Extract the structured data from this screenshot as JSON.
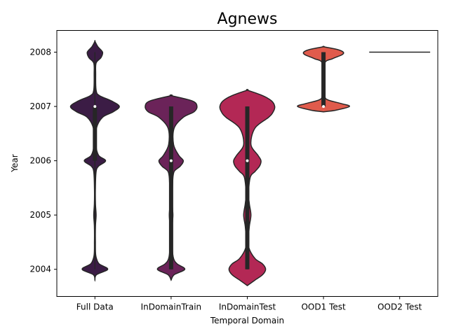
{
  "chart_data": {
    "type": "violin",
    "title": "Agnews",
    "xlabel": "Temporal Domain",
    "ylabel": "Year",
    "ylim": [
      2003.5,
      2008.4
    ],
    "yticks": [
      2004,
      2005,
      2006,
      2007,
      2008
    ],
    "ytick_labels": [
      "2004",
      "2005",
      "2006",
      "2007",
      "2008"
    ],
    "categories": [
      "Full Data",
      "InDomainTrain",
      "InDomainTest",
      "OOD1 Test",
      "OOD2 Test"
    ],
    "grid": false,
    "series": [
      {
        "category": "Full Data",
        "color": "#3b1c45",
        "median": 2007,
        "q1": 2006,
        "q3": 2007,
        "min": 2004,
        "max": 2008,
        "density": [
          [
            2003.8,
            0
          ],
          [
            2003.9,
            0.05
          ],
          [
            2004.0,
            0.42
          ],
          [
            2004.1,
            0.14
          ],
          [
            2004.2,
            0.05
          ],
          [
            2004.3,
            0.02
          ],
          [
            2004.5,
            0.015
          ],
          [
            2004.8,
            0.018
          ],
          [
            2005.0,
            0.04
          ],
          [
            2005.2,
            0.018
          ],
          [
            2005.5,
            0.015
          ],
          [
            2005.8,
            0.04
          ],
          [
            2005.9,
            0.12
          ],
          [
            2006.0,
            0.35
          ],
          [
            2006.1,
            0.12
          ],
          [
            2006.3,
            0.03
          ],
          [
            2006.6,
            0.05
          ],
          [
            2006.8,
            0.25
          ],
          [
            2006.9,
            0.6
          ],
          [
            2007.0,
            0.8
          ],
          [
            2007.1,
            0.55
          ],
          [
            2007.2,
            0.15
          ],
          [
            2007.3,
            0.04
          ],
          [
            2007.6,
            0.025
          ],
          [
            2007.8,
            0.04
          ],
          [
            2007.9,
            0.2
          ],
          [
            2008.0,
            0.25
          ],
          [
            2008.1,
            0.1
          ],
          [
            2008.2,
            0
          ]
        ]
      },
      {
        "category": "InDomainTrain",
        "color": "#6b2359",
        "median": 2006,
        "q1": 2004,
        "q3": 2007,
        "min": 2004,
        "max": 2007,
        "density": [
          [
            2003.8,
            0
          ],
          [
            2003.9,
            0.1
          ],
          [
            2004.0,
            0.45
          ],
          [
            2004.1,
            0.2
          ],
          [
            2004.2,
            0.08
          ],
          [
            2004.4,
            0.04
          ],
          [
            2004.8,
            0.04
          ],
          [
            2005.0,
            0.06
          ],
          [
            2005.2,
            0.04
          ],
          [
            2005.6,
            0.05
          ],
          [
            2005.8,
            0.1
          ],
          [
            2005.9,
            0.3
          ],
          [
            2006.0,
            0.4
          ],
          [
            2006.1,
            0.25
          ],
          [
            2006.3,
            0.08
          ],
          [
            2006.6,
            0.1
          ],
          [
            2006.8,
            0.4
          ],
          [
            2006.9,
            0.75
          ],
          [
            2007.0,
            0.85
          ],
          [
            2007.1,
            0.7
          ],
          [
            2007.2,
            0
          ]
        ]
      },
      {
        "category": "InDomainTest",
        "color": "#b32855",
        "median": 2006,
        "q1": 2004,
        "q3": 2007,
        "min": 2004,
        "max": 2007,
        "density": [
          [
            2003.7,
            0
          ],
          [
            2003.8,
            0.25
          ],
          [
            2003.9,
            0.5
          ],
          [
            2004.0,
            0.6
          ],
          [
            2004.1,
            0.5
          ],
          [
            2004.2,
            0.25
          ],
          [
            2004.4,
            0.05
          ],
          [
            2004.6,
            0.04
          ],
          [
            2004.8,
            0.07
          ],
          [
            2005.0,
            0.12
          ],
          [
            2005.2,
            0.07
          ],
          [
            2005.4,
            0.04
          ],
          [
            2005.7,
            0.1
          ],
          [
            2005.8,
            0.25
          ],
          [
            2005.9,
            0.4
          ],
          [
            2006.0,
            0.45
          ],
          [
            2006.1,
            0.35
          ],
          [
            2006.3,
            0.12
          ],
          [
            2006.6,
            0.25
          ],
          [
            2006.8,
            0.7
          ],
          [
            2006.9,
            0.85
          ],
          [
            2007.0,
            0.9
          ],
          [
            2007.1,
            0.8
          ],
          [
            2007.2,
            0.5
          ],
          [
            2007.3,
            0
          ]
        ]
      },
      {
        "category": "OOD1 Test",
        "color": "#e05b4c",
        "median": 2007,
        "q1": 2007,
        "q3": 2008,
        "min": 2007,
        "max": 2008,
        "density": [
          [
            2006.9,
            0
          ],
          [
            2006.93,
            0.4
          ],
          [
            2007.0,
            0.85
          ],
          [
            2007.05,
            0.6
          ],
          [
            2007.12,
            0.15
          ],
          [
            2007.2,
            0.04
          ],
          [
            2007.5,
            0.02
          ],
          [
            2007.8,
            0.04
          ],
          [
            2007.88,
            0.3
          ],
          [
            2007.95,
            0.6
          ],
          [
            2008.0,
            0.65
          ],
          [
            2008.05,
            0.45
          ],
          [
            2008.1,
            0
          ]
        ]
      },
      {
        "category": "OOD2 Test",
        "color": "#f08d6a",
        "value": 2008,
        "degenerate": true
      }
    ]
  }
}
